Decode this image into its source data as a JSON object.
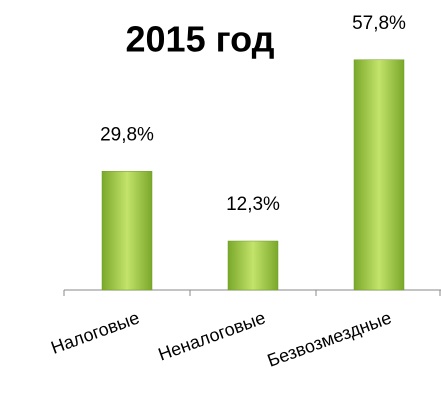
{
  "chart_data": {
    "type": "bar",
    "title": "2015 год",
    "categories": [
      "Налоговые",
      "Неналоговые",
      "Безвозмездные"
    ],
    "values": [
      29.8,
      12.3,
      57.8
    ],
    "value_labels": [
      "29,8%",
      "12,3%",
      "57,8%"
    ],
    "color": "#92c43a",
    "ylim": [
      0,
      60
    ]
  }
}
